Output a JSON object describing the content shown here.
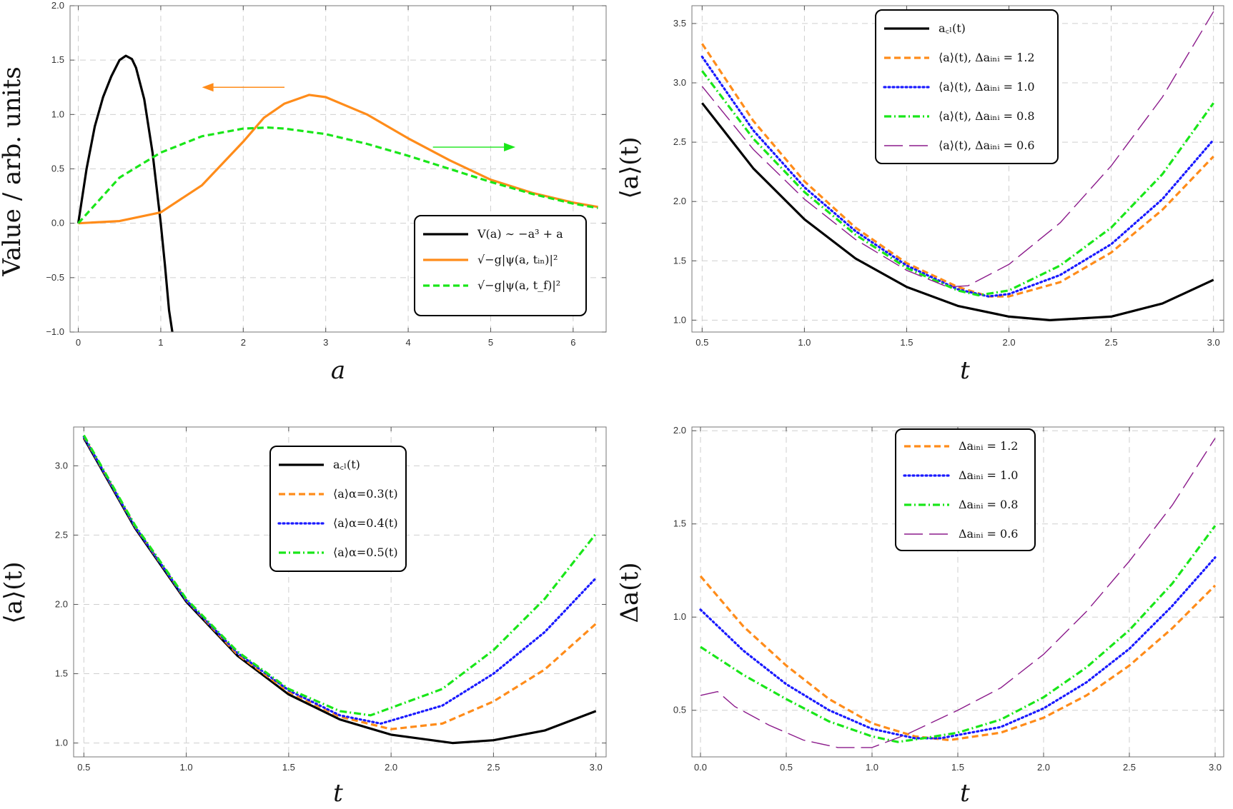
{
  "colors": {
    "black": "#000000",
    "orange": "#ff8c1a",
    "blue": "#1a1aff",
    "green": "#19e619",
    "purple": "#8b1a8b"
  },
  "chart_data": [
    {
      "type": "line",
      "id": "p1",
      "xlabel": "a",
      "ylabel": "Value / arb. units",
      "xlim": [
        -0.1,
        6.4
      ],
      "ylim": [
        -1.0,
        2.0
      ],
      "xticks": [
        0,
        1,
        2,
        3,
        4,
        5,
        6
      ],
      "yticks": [
        -1.0,
        -0.5,
        0.0,
        0.5,
        1.0,
        1.5,
        2.0
      ],
      "grid": true,
      "legend_position": "bottom-right",
      "annotations": [
        {
          "type": "arrow",
          "direction": "left",
          "color": "orange",
          "from": [
            2.5,
            1.25
          ],
          "to": [
            1.5,
            1.25
          ]
        },
        {
          "type": "arrow",
          "direction": "right",
          "color": "green",
          "from": [
            4.3,
            0.7
          ],
          "to": [
            5.3,
            0.7
          ]
        }
      ],
      "series": [
        {
          "name": "V(a) ∼ −a³ + a",
          "color": "black",
          "style": "solid",
          "x": [
            0,
            0.1,
            0.2,
            0.3,
            0.4,
            0.5,
            0.577,
            0.65,
            0.7,
            0.8,
            0.9,
            1.0,
            1.05,
            1.1,
            1.14
          ],
          "y": [
            0,
            0.5,
            0.89,
            1.16,
            1.35,
            1.5,
            1.54,
            1.51,
            1.43,
            1.14,
            0.65,
            0.0,
            -0.38,
            -0.8,
            -1.0
          ]
        },
        {
          "name": "√−g|ψ(a, t_in)|²",
          "color": "orange",
          "style": "solid",
          "x": [
            0,
            0.5,
            1.0,
            1.5,
            2.0,
            2.25,
            2.5,
            2.8,
            3.0,
            3.5,
            4.0,
            4.5,
            5.0,
            5.5,
            6.0,
            6.3
          ],
          "y": [
            0,
            0.02,
            0.1,
            0.35,
            0.75,
            0.97,
            1.1,
            1.18,
            1.16,
            1.0,
            0.78,
            0.58,
            0.4,
            0.28,
            0.19,
            0.15
          ]
        },
        {
          "name": "√−g|ψ(a, t_f)|²",
          "color": "green",
          "style": "dashed",
          "x": [
            0,
            0.5,
            1.0,
            1.5,
            2.0,
            2.3,
            2.5,
            3.0,
            3.5,
            4.0,
            4.5,
            5.0,
            5.5,
            6.0,
            6.3
          ],
          "y": [
            0,
            0.42,
            0.65,
            0.8,
            0.87,
            0.88,
            0.87,
            0.82,
            0.73,
            0.62,
            0.5,
            0.38,
            0.27,
            0.18,
            0.14
          ]
        }
      ]
    },
    {
      "type": "line",
      "id": "p2",
      "xlabel": "t",
      "ylabel": "⟨a⟩(t)",
      "xlim": [
        0.45,
        3.05
      ],
      "ylim": [
        0.9,
        3.65
      ],
      "xticks": [
        0.5,
        1.0,
        1.5,
        2.0,
        2.5,
        3.0
      ],
      "yticks": [
        1.0,
        1.5,
        2.0,
        2.5,
        3.0,
        3.5
      ],
      "grid": true,
      "legend_position": "top-center",
      "series": [
        {
          "name": "a_cl(t)",
          "color": "black",
          "style": "solid",
          "x": [
            0.5,
            0.75,
            1.0,
            1.25,
            1.5,
            1.75,
            2.0,
            2.2,
            2.5,
            2.75,
            3.0
          ],
          "y": [
            2.83,
            2.28,
            1.85,
            1.52,
            1.28,
            1.12,
            1.03,
            1.0,
            1.03,
            1.14,
            1.34
          ]
        },
        {
          "name": "⟨a⟩(t), Δa_ini = 1.2",
          "color": "orange",
          "style": "dashed",
          "x": [
            0.5,
            0.75,
            1.0,
            1.25,
            1.5,
            1.75,
            1.9,
            2.0,
            2.25,
            2.5,
            2.75,
            3.0
          ],
          "y": [
            3.33,
            2.68,
            2.17,
            1.78,
            1.48,
            1.28,
            1.2,
            1.2,
            1.32,
            1.57,
            1.93,
            2.38
          ]
        },
        {
          "name": "⟨a⟩(t), Δa_ini = 1.0",
          "color": "blue",
          "style": "dotted",
          "x": [
            0.5,
            0.75,
            1.0,
            1.25,
            1.5,
            1.75,
            1.9,
            2.0,
            2.25,
            2.5,
            2.75,
            3.0
          ],
          "y": [
            3.22,
            2.6,
            2.12,
            1.75,
            1.46,
            1.26,
            1.2,
            1.22,
            1.38,
            1.64,
            2.02,
            2.52
          ]
        },
        {
          "name": "⟨a⟩(t), Δa_ini = 0.8",
          "color": "green",
          "style": "dashdot",
          "x": [
            0.5,
            0.75,
            1.0,
            1.25,
            1.5,
            1.75,
            1.85,
            2.0,
            2.25,
            2.5,
            2.75,
            3.0
          ],
          "y": [
            3.1,
            2.53,
            2.08,
            1.72,
            1.44,
            1.25,
            1.21,
            1.25,
            1.46,
            1.78,
            2.23,
            2.83
          ]
        },
        {
          "name": "⟨a⟩(t), Δa_ini = 0.6",
          "color": "purple",
          "style": "longdash",
          "x": [
            0.5,
            0.75,
            1.0,
            1.25,
            1.5,
            1.7,
            1.8,
            2.0,
            2.25,
            2.5,
            2.75,
            3.0
          ],
          "y": [
            2.97,
            2.44,
            2.02,
            1.68,
            1.42,
            1.28,
            1.29,
            1.47,
            1.82,
            2.3,
            2.88,
            3.6
          ]
        }
      ]
    },
    {
      "type": "line",
      "id": "p3",
      "xlabel": "t",
      "ylabel": "⟨a⟩(t)",
      "xlim": [
        0.45,
        3.05
      ],
      "ylim": [
        0.9,
        3.28
      ],
      "xticks": [
        0.5,
        1.0,
        1.5,
        2.0,
        2.5,
        3.0
      ],
      "yticks": [
        1.0,
        1.5,
        2.0,
        2.5,
        3.0
      ],
      "grid": true,
      "legend_position": "top-center",
      "series": [
        {
          "name": "a_cl(t)",
          "color": "black",
          "style": "solid",
          "x": [
            0.5,
            0.75,
            1.0,
            1.25,
            1.5,
            1.75,
            2.0,
            2.3,
            2.5,
            2.75,
            3.0
          ],
          "y": [
            3.2,
            2.55,
            2.02,
            1.63,
            1.35,
            1.17,
            1.06,
            1.0,
            1.02,
            1.09,
            1.23
          ]
        },
        {
          "name": "⟨a⟩_α=0.3(t)",
          "color": "orange",
          "style": "dashed",
          "x": [
            0.5,
            0.75,
            1.0,
            1.25,
            1.5,
            1.75,
            2.0,
            2.25,
            2.5,
            2.75,
            3.0
          ],
          "y": [
            3.21,
            2.56,
            2.03,
            1.64,
            1.37,
            1.19,
            1.1,
            1.14,
            1.3,
            1.53,
            1.86
          ]
        },
        {
          "name": "⟨a⟩_α=0.4(t)",
          "color": "blue",
          "style": "dotted",
          "x": [
            0.5,
            0.75,
            1.0,
            1.25,
            1.5,
            1.75,
            1.95,
            2.25,
            2.5,
            2.75,
            3.0
          ],
          "y": [
            3.21,
            2.56,
            2.03,
            1.65,
            1.38,
            1.2,
            1.14,
            1.27,
            1.5,
            1.8,
            2.19
          ]
        },
        {
          "name": "⟨a⟩_α=0.5(t)",
          "color": "green",
          "style": "dashdot",
          "x": [
            0.5,
            0.75,
            1.0,
            1.25,
            1.5,
            1.75,
            1.9,
            2.25,
            2.5,
            2.75,
            3.0
          ],
          "y": [
            3.22,
            2.57,
            2.04,
            1.66,
            1.39,
            1.23,
            1.2,
            1.39,
            1.67,
            2.04,
            2.51
          ]
        }
      ]
    },
    {
      "type": "line",
      "id": "p4",
      "xlabel": "t",
      "ylabel": "Δa(t)",
      "xlim": [
        -0.05,
        3.05
      ],
      "ylim": [
        0.25,
        2.02
      ],
      "xticks": [
        0.0,
        0.5,
        1.0,
        1.5,
        2.0,
        2.5,
        3.0
      ],
      "yticks": [
        0.5,
        1.0,
        1.5,
        2.0
      ],
      "grid": true,
      "legend_position": "top-center",
      "series": [
        {
          "name": "Δa_ini = 1.2",
          "color": "orange",
          "style": "dashed",
          "x": [
            0.0,
            0.25,
            0.5,
            0.75,
            1.0,
            1.25,
            1.45,
            1.75,
            2.0,
            2.25,
            2.5,
            2.75,
            3.0
          ],
          "y": [
            1.22,
            0.95,
            0.74,
            0.56,
            0.43,
            0.36,
            0.34,
            0.38,
            0.46,
            0.58,
            0.74,
            0.94,
            1.17
          ]
        },
        {
          "name": "Δa_ini = 1.0",
          "color": "blue",
          "style": "dotted",
          "x": [
            0.0,
            0.25,
            0.5,
            0.75,
            1.0,
            1.25,
            1.4,
            1.75,
            2.0,
            2.25,
            2.5,
            2.75,
            3.0
          ],
          "y": [
            1.04,
            0.82,
            0.64,
            0.5,
            0.4,
            0.35,
            0.35,
            0.41,
            0.51,
            0.65,
            0.83,
            1.06,
            1.32
          ]
        },
        {
          "name": "Δa_ini = 0.8",
          "color": "green",
          "style": "dashdot",
          "x": [
            0.0,
            0.25,
            0.5,
            0.75,
            1.0,
            1.15,
            1.3,
            1.5,
            1.75,
            2.0,
            2.25,
            2.5,
            2.75,
            3.0
          ],
          "y": [
            0.84,
            0.69,
            0.56,
            0.44,
            0.36,
            0.33,
            0.35,
            0.38,
            0.45,
            0.57,
            0.73,
            0.93,
            1.18,
            1.49
          ]
        },
        {
          "name": "Δa_ini = 0.6",
          "color": "purple",
          "style": "longdash",
          "x": [
            0.0,
            0.1,
            0.2,
            0.4,
            0.6,
            0.8,
            1.0,
            1.2,
            1.5,
            1.75,
            2.0,
            2.25,
            2.5,
            2.75,
            3.0
          ],
          "y": [
            0.58,
            0.6,
            0.52,
            0.42,
            0.34,
            0.3,
            0.3,
            0.37,
            0.5,
            0.62,
            0.8,
            1.03,
            1.3,
            1.6,
            1.96
          ]
        }
      ]
    }
  ],
  "legends": {
    "p1": [
      {
        "color": "black",
        "style": "solid",
        "label": "V(a) ∼ −a³ + a"
      },
      {
        "color": "orange",
        "style": "solid",
        "label": "√−g|ψ(a, tᵢₙ)|²"
      },
      {
        "color": "green",
        "style": "dashed",
        "label": "√−g|ψ(a, t_f)|²"
      }
    ],
    "p2": [
      {
        "color": "black",
        "style": "solid",
        "label": "a꜀ₗ(t)"
      },
      {
        "color": "orange",
        "style": "dashed",
        "label": "⟨a⟩(t), Δaᵢₙᵢ = 1.2"
      },
      {
        "color": "blue",
        "style": "dotted",
        "label": "⟨a⟩(t), Δaᵢₙᵢ = 1.0"
      },
      {
        "color": "green",
        "style": "dashdot",
        "label": "⟨a⟩(t), Δaᵢₙᵢ = 0.8"
      },
      {
        "color": "purple",
        "style": "longdash",
        "label": "⟨a⟩(t), Δaᵢₙᵢ = 0.6"
      }
    ],
    "p3": [
      {
        "color": "black",
        "style": "solid",
        "label": "a꜀ₗ(t)"
      },
      {
        "color": "orange",
        "style": "dashed",
        "label": "⟨a⟩α=0.3(t)"
      },
      {
        "color": "blue",
        "style": "dotted",
        "label": "⟨a⟩α=0.4(t)"
      },
      {
        "color": "green",
        "style": "dashdot",
        "label": "⟨a⟩α=0.5(t)"
      }
    ],
    "p4": [
      {
        "color": "orange",
        "style": "dashed",
        "label": "Δaᵢₙᵢ = 1.2"
      },
      {
        "color": "blue",
        "style": "dotted",
        "label": "Δaᵢₙᵢ = 1.0"
      },
      {
        "color": "green",
        "style": "dashdot",
        "label": "Δaᵢₙᵢ = 0.8"
      },
      {
        "color": "purple",
        "style": "longdash",
        "label": "Δaᵢₙᵢ = 0.6"
      }
    ]
  }
}
